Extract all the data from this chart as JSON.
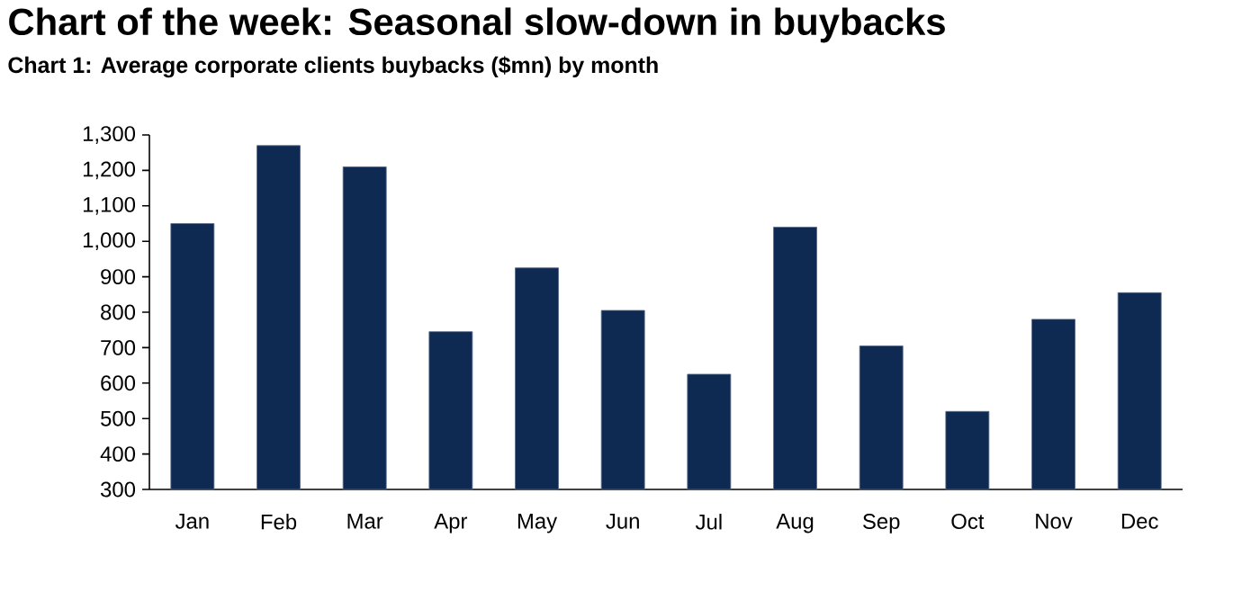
{
  "chart_data": {
    "type": "bar",
    "title": "Chart of the week: Seasonal slow-down in buybacks",
    "subtitle": "Chart 1: Average corporate clients buybacks ($mn) by month",
    "categories": [
      "Jan",
      "Feb",
      "Mar",
      "Apr",
      "May",
      "Jun",
      "Jul",
      "Aug",
      "Sep",
      "Oct",
      "Nov",
      "Dec"
    ],
    "values": [
      1050,
      1270,
      1210,
      745,
      925,
      805,
      625,
      1040,
      705,
      520,
      780,
      855
    ],
    "color": "#0e2a52",
    "ylim": [
      300,
      1300
    ],
    "yticks": [
      {
        "value": 300,
        "label": "300"
      },
      {
        "value": 400,
        "label": "400"
      },
      {
        "value": 500,
        "label": "500"
      },
      {
        "value": 600,
        "label": "600"
      },
      {
        "value": 700,
        "label": "700"
      },
      {
        "value": 800,
        "label": "800"
      },
      {
        "value": 900,
        "label": "900"
      },
      {
        "value": 1000,
        "label": "1,000"
      },
      {
        "value": 1100,
        "label": "1,100"
      },
      {
        "value": 1200,
        "label": "1,200"
      },
      {
        "value": 1300,
        "label": "1,300"
      }
    ],
    "grid": false
  }
}
